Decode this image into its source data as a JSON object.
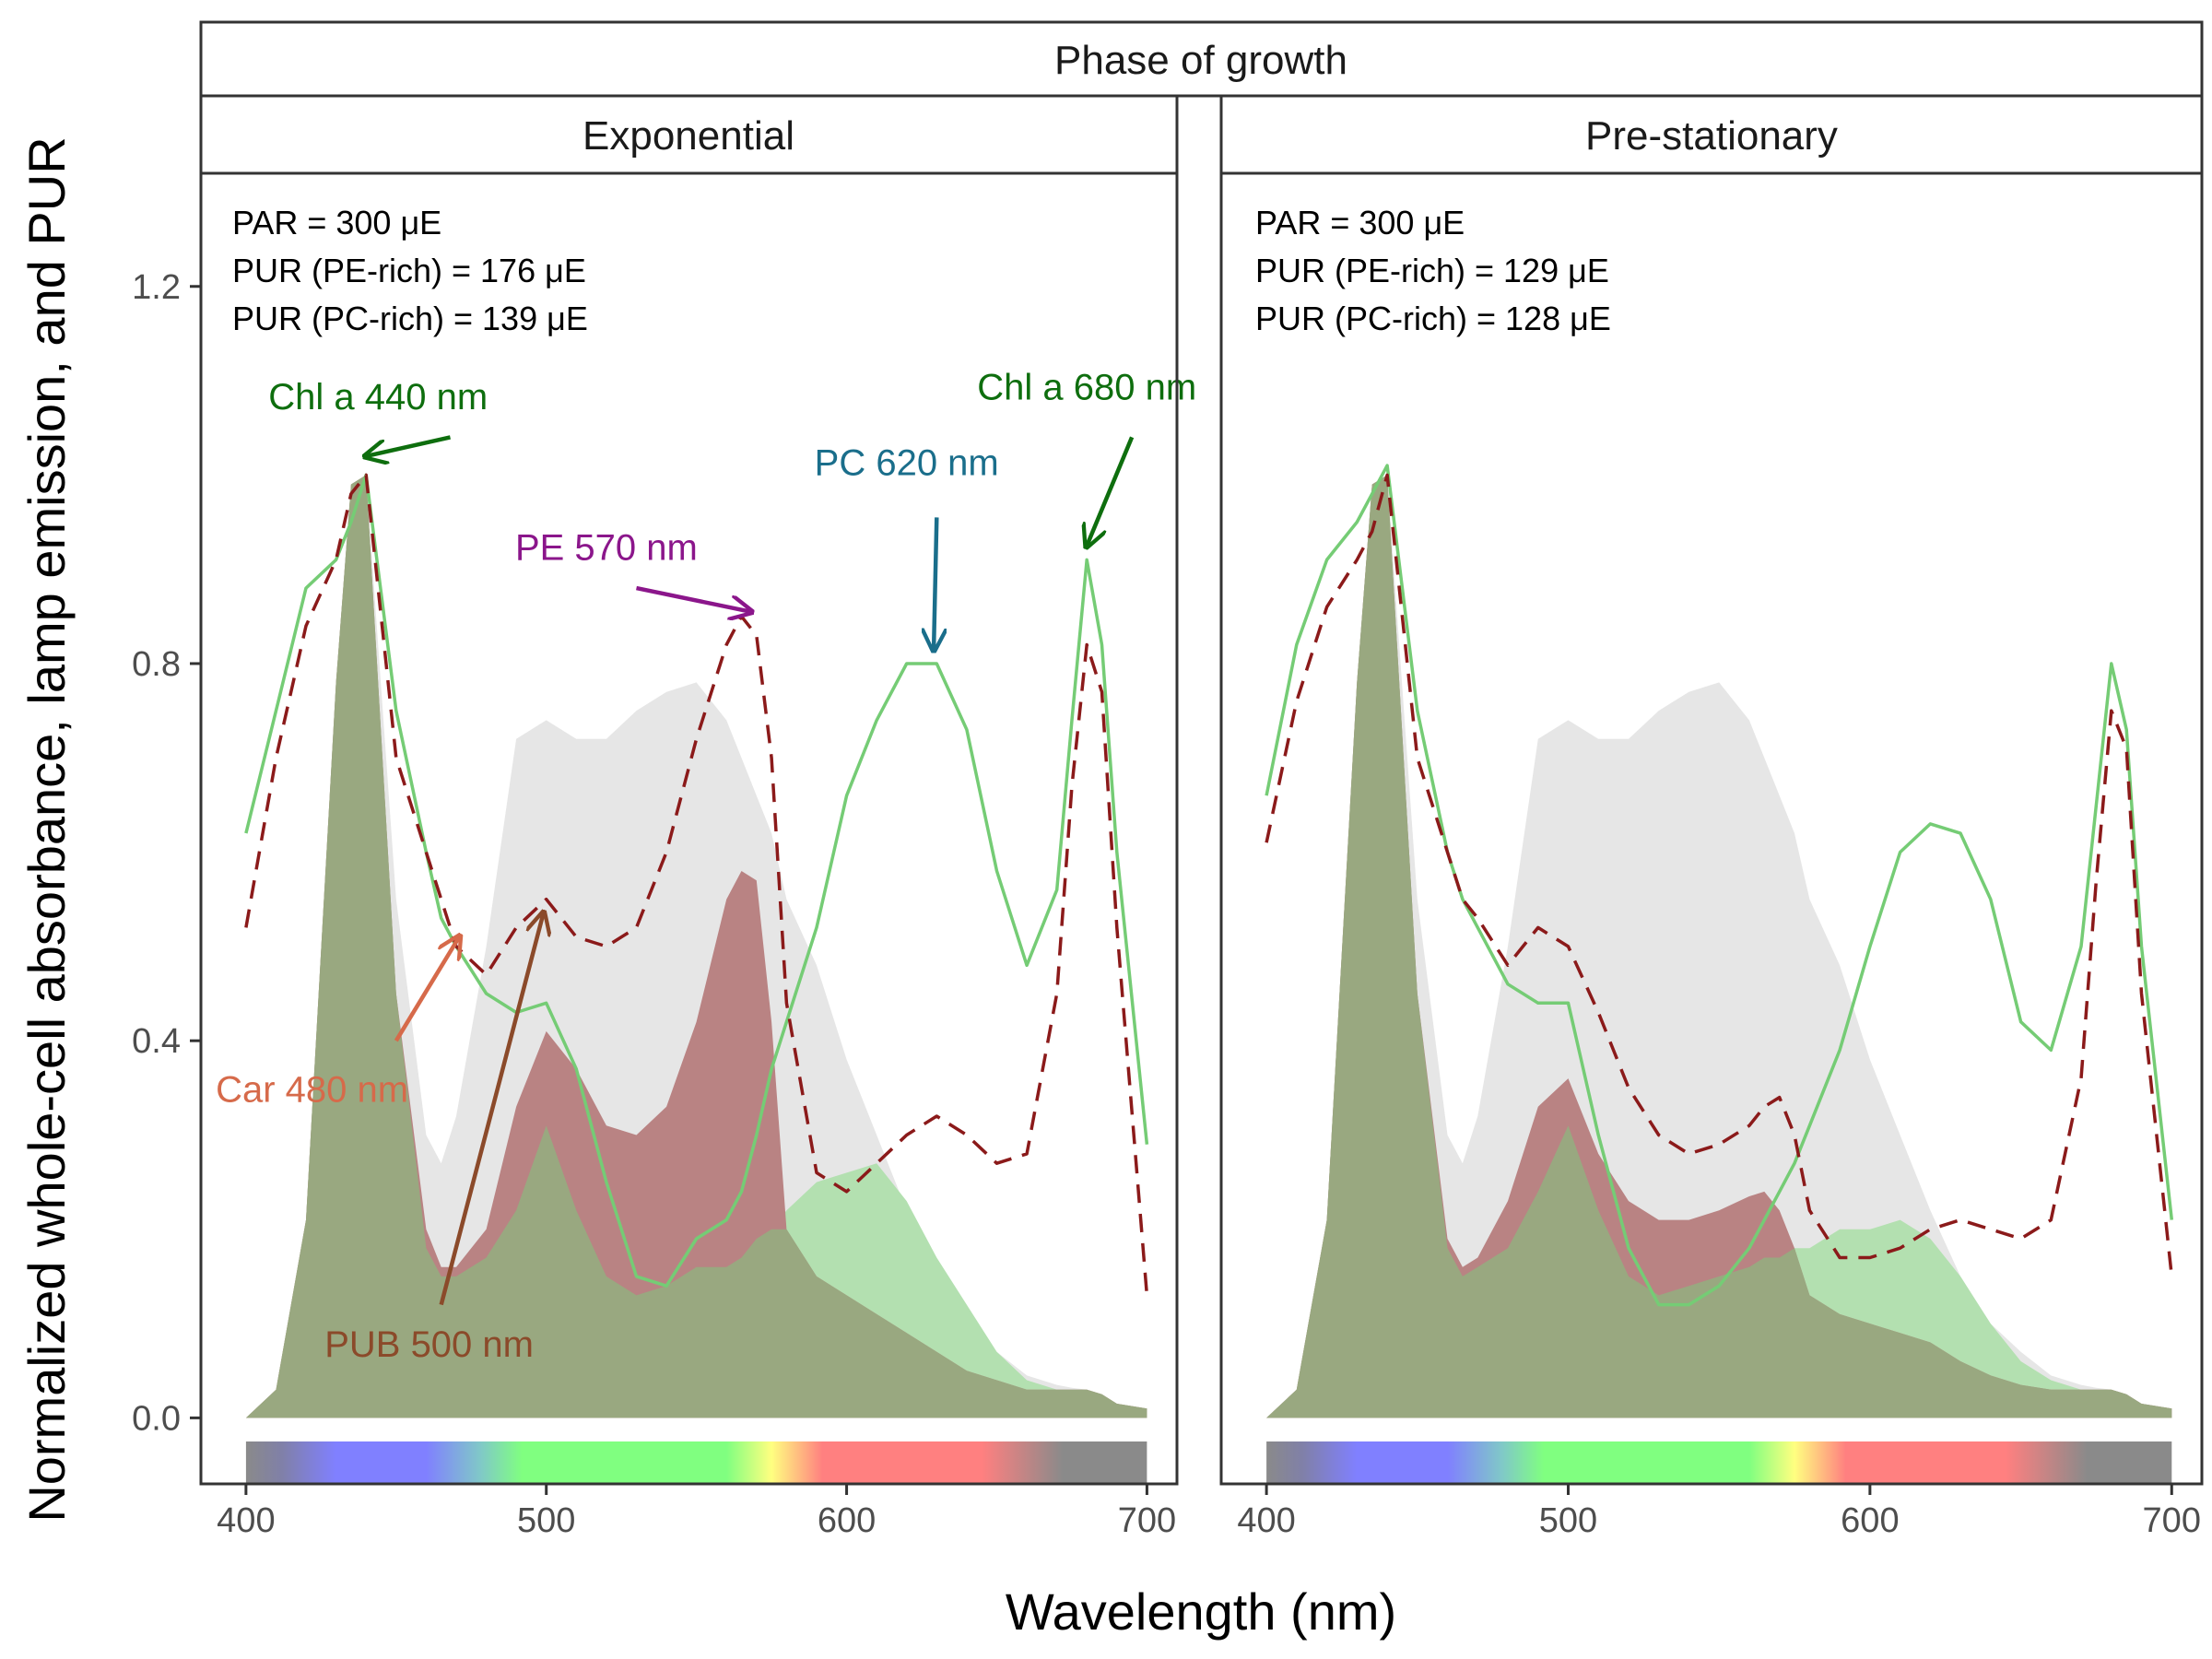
{
  "chart_data": {
    "type": "area",
    "title": "",
    "facet_title": "Phase of growth",
    "xlabel": "Wavelength (nm)",
    "ylabel": "Normalized whole-cell absorbance, lamp emission, and PUR",
    "xlim": [
      385,
      710
    ],
    "ylim": [
      -0.07,
      1.32
    ],
    "xticks": [
      400,
      500,
      600,
      700
    ],
    "xtick_labels": [
      "400",
      "500",
      "600",
      "700"
    ],
    "yticks": [
      0.0,
      0.4,
      0.8,
      1.2
    ],
    "ytick_labels": [
      "0.0",
      "0.4",
      "0.8",
      "1.2"
    ],
    "grid": false,
    "spectrum_bar": {
      "y_range": [
        -0.07,
        -0.025
      ],
      "colors": [
        {
          "nm": 400,
          "color": "#8a8a8a"
        },
        {
          "nm": 412,
          "color": "#8080a8"
        },
        {
          "nm": 430,
          "color": "#8080ff"
        },
        {
          "nm": 460,
          "color": "#8080ff"
        },
        {
          "nm": 478,
          "color": "#80c8c8"
        },
        {
          "nm": 492,
          "color": "#80ff80"
        },
        {
          "nm": 560,
          "color": "#80ff80"
        },
        {
          "nm": 575,
          "color": "#ffff80"
        },
        {
          "nm": 592,
          "color": "#ff8080"
        },
        {
          "nm": 645,
          "color": "#ff8080"
        },
        {
          "nm": 672,
          "color": "#8a8a8a"
        },
        {
          "nm": 700,
          "color": "#8a8a8a"
        }
      ]
    },
    "series_styles": {
      "lamp_emission": {
        "fill": "#e6e6e6"
      },
      "pur_pe_rich": {
        "fill": "#b98383"
      },
      "pur_pc_rich": {
        "fill": "#b3e0b0"
      },
      "overlap": {
        "fill": "#99a880"
      },
      "absorbance_pc_rich": {
        "stroke": "#75cc75"
      },
      "absorbance_pe_rich": {
        "stroke": "#8b1a1a"
      }
    },
    "panels": [
      {
        "title": "Exponential",
        "info": [
          "PAR = 300 μE",
          "PUR (PE-rich) = 176 μE",
          "PUR (PC-rich) = 139 μE"
        ],
        "x": [
          400,
          410,
          420,
          430,
          435,
          440,
          450,
          460,
          465,
          470,
          480,
          490,
          500,
          510,
          520,
          530,
          540,
          550,
          560,
          565,
          570,
          575,
          580,
          590,
          600,
          610,
          620,
          630,
          640,
          650,
          660,
          670,
          675,
          680,
          685,
          690,
          700
        ],
        "series": [
          {
            "key": "lamp_emission",
            "values": [
              0.0,
              0.03,
              0.21,
              0.78,
              0.99,
              1.0,
              0.55,
              0.3,
              0.27,
              0.32,
              0.5,
              0.72,
              0.74,
              0.72,
              0.72,
              0.75,
              0.77,
              0.78,
              0.74,
              0.7,
              0.66,
              0.62,
              0.55,
              0.48,
              0.38,
              0.3,
              0.22,
              0.15,
              0.1,
              0.07,
              0.045,
              0.035,
              0.032,
              0.03,
              0.025,
              0.015,
              0.01
            ]
          },
          {
            "key": "pur_pe_rich",
            "values": [
              0.0,
              0.03,
              0.21,
              0.78,
              0.99,
              1.0,
              0.45,
              0.2,
              0.16,
              0.16,
              0.2,
              0.33,
              0.41,
              0.37,
              0.31,
              0.3,
              0.33,
              0.42,
              0.55,
              0.58,
              0.57,
              0.42,
              0.2,
              0.15,
              0.13,
              0.11,
              0.09,
              0.07,
              0.05,
              0.04,
              0.03,
              0.03,
              0.03,
              0.03,
              0.025,
              0.015,
              0.01
            ]
          },
          {
            "key": "pur_pc_rich",
            "values": [
              0.0,
              0.03,
              0.21,
              0.78,
              0.99,
              1.0,
              0.45,
              0.18,
              0.15,
              0.15,
              0.17,
              0.22,
              0.31,
              0.22,
              0.15,
              0.13,
              0.14,
              0.16,
              0.16,
              0.17,
              0.19,
              0.2,
              0.22,
              0.25,
              0.26,
              0.27,
              0.23,
              0.17,
              0.12,
              0.07,
              0.04,
              0.03,
              0.03,
              0.03,
              0.025,
              0.015,
              0.01
            ]
          },
          {
            "key": "absorbance_pc_rich",
            "values": [
              0.62,
              0.75,
              0.88,
              0.91,
              0.95,
              1.0,
              0.75,
              0.6,
              0.53,
              0.5,
              0.45,
              0.43,
              0.44,
              0.37,
              0.25,
              0.15,
              0.14,
              0.19,
              0.21,
              0.24,
              0.3,
              0.37,
              0.42,
              0.52,
              0.66,
              0.74,
              0.8,
              0.8,
              0.73,
              0.58,
              0.48,
              0.56,
              0.74,
              0.91,
              0.82,
              0.6,
              0.29
            ]
          },
          {
            "key": "absorbance_pe_rich",
            "values": [
              0.52,
              0.7,
              0.84,
              0.91,
              0.98,
              1.0,
              0.7,
              0.6,
              0.55,
              0.5,
              0.47,
              0.52,
              0.55,
              0.51,
              0.5,
              0.52,
              0.6,
              0.72,
              0.82,
              0.85,
              0.83,
              0.7,
              0.44,
              0.26,
              0.24,
              0.27,
              0.3,
              0.32,
              0.3,
              0.27,
              0.28,
              0.45,
              0.67,
              0.82,
              0.77,
              0.52,
              0.13
            ]
          }
        ],
        "annotations": [
          {
            "label": "Chl a 440 nm",
            "color": "#0e6e0e",
            "text_at": [
              444,
              1.07
            ],
            "anchor": "middle",
            "arrow_from": [
              468,
              1.04
            ],
            "arrow_to": [
              440,
              1.02
            ]
          },
          {
            "label": "PE 570 nm",
            "color": "#8b168b",
            "text_at": [
              520,
              0.91
            ],
            "anchor": "middle",
            "arrow_from": [
              530,
              0.88
            ],
            "arrow_to": [
              568,
              0.855
            ]
          },
          {
            "label": "PC 620 nm",
            "color": "#1a6e8b",
            "text_at": [
              620,
              1.0
            ],
            "anchor": "middle",
            "arrow_from": [
              630,
              0.955
            ],
            "arrow_to": [
              629,
              0.815
            ]
          },
          {
            "label": "Chl a 680 nm",
            "color": "#0e6e0e",
            "text_at": [
              680,
              1.08
            ],
            "anchor": "middle",
            "arrow_from": [
              695,
              1.04
            ],
            "arrow_to": [
              680,
              0.925
            ]
          },
          {
            "label": "Car 480 nm",
            "color": "#d66a4a",
            "text_at": [
              422,
              0.335
            ],
            "anchor": "middle",
            "arrow_from": [
              450,
              0.4
            ],
            "arrow_to": [
              471,
              0.51
            ]
          },
          {
            "label": "PUB 500 nm",
            "color": "#8b4a2a",
            "text_at": [
              461,
              0.065
            ],
            "anchor": "middle",
            "arrow_from": [
              465,
              0.12
            ],
            "arrow_to": [
              499,
              0.535
            ]
          }
        ]
      },
      {
        "title": "Pre-stationary",
        "info": [
          "PAR = 300 μE",
          "PUR (PE-rich) = 129 μE",
          "PUR (PC-rich) = 128 μE"
        ],
        "x": [
          400,
          410,
          420,
          430,
          435,
          440,
          450,
          460,
          465,
          470,
          480,
          490,
          500,
          510,
          520,
          530,
          540,
          550,
          560,
          565,
          570,
          575,
          580,
          590,
          600,
          610,
          620,
          630,
          640,
          650,
          660,
          670,
          675,
          680,
          685,
          690,
          700
        ],
        "series": [
          {
            "key": "lamp_emission",
            "values": [
              0.0,
              0.03,
              0.21,
              0.78,
              0.99,
              1.0,
              0.55,
              0.3,
              0.27,
              0.32,
              0.5,
              0.72,
              0.74,
              0.72,
              0.72,
              0.75,
              0.77,
              0.78,
              0.74,
              0.7,
              0.66,
              0.62,
              0.55,
              0.48,
              0.38,
              0.3,
              0.22,
              0.15,
              0.1,
              0.07,
              0.045,
              0.035,
              0.032,
              0.03,
              0.025,
              0.015,
              0.01
            ]
          },
          {
            "key": "pur_pe_rich",
            "values": [
              0.0,
              0.03,
              0.21,
              0.78,
              0.99,
              1.0,
              0.45,
              0.19,
              0.16,
              0.17,
              0.23,
              0.33,
              0.36,
              0.28,
              0.23,
              0.21,
              0.21,
              0.22,
              0.235,
              0.24,
              0.22,
              0.18,
              0.13,
              0.11,
              0.1,
              0.09,
              0.08,
              0.06,
              0.045,
              0.035,
              0.03,
              0.03,
              0.03,
              0.03,
              0.025,
              0.015,
              0.01
            ]
          },
          {
            "key": "pur_pc_rich",
            "values": [
              0.0,
              0.03,
              0.21,
              0.78,
              0.99,
              1.0,
              0.45,
              0.18,
              0.15,
              0.16,
              0.18,
              0.24,
              0.31,
              0.22,
              0.15,
              0.13,
              0.14,
              0.15,
              0.16,
              0.17,
              0.17,
              0.18,
              0.18,
              0.2,
              0.2,
              0.21,
              0.19,
              0.15,
              0.1,
              0.06,
              0.04,
              0.03,
              0.03,
              0.03,
              0.025,
              0.015,
              0.01
            ]
          },
          {
            "key": "absorbance_pc_rich",
            "values": [
              0.66,
              0.82,
              0.91,
              0.95,
              0.98,
              1.01,
              0.75,
              0.6,
              0.55,
              0.52,
              0.46,
              0.44,
              0.44,
              0.3,
              0.18,
              0.12,
              0.12,
              0.14,
              0.18,
              0.21,
              0.24,
              0.27,
              0.31,
              0.39,
              0.5,
              0.6,
              0.63,
              0.62,
              0.55,
              0.42,
              0.39,
              0.5,
              0.65,
              0.8,
              0.73,
              0.5,
              0.21
            ]
          },
          {
            "key": "absorbance_pe_rich",
            "values": [
              0.61,
              0.76,
              0.86,
              0.91,
              0.94,
              1.0,
              0.7,
              0.6,
              0.55,
              0.53,
              0.48,
              0.52,
              0.5,
              0.43,
              0.35,
              0.3,
              0.28,
              0.29,
              0.31,
              0.33,
              0.34,
              0.3,
              0.22,
              0.17,
              0.17,
              0.18,
              0.2,
              0.21,
              0.2,
              0.19,
              0.21,
              0.36,
              0.57,
              0.75,
              0.71,
              0.45,
              0.15
            ]
          }
        ],
        "annotations": []
      }
    ]
  }
}
